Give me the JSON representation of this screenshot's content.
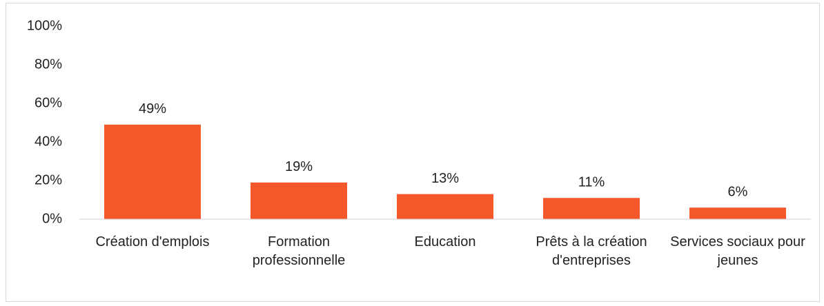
{
  "chart_data": {
    "type": "bar",
    "categories": [
      "Création d'emplois",
      "Formation professionnelle",
      "Education",
      "Prêts à la création d'entreprises",
      "Services sociaux pour jeunes"
    ],
    "values": [
      49,
      19,
      13,
      11,
      6
    ],
    "value_labels": [
      "49%",
      "19%",
      "13%",
      "11%",
      "6%"
    ],
    "color": "#f4572a",
    "ylim": [
      0,
      100
    ],
    "yticks": [
      {
        "value": 0,
        "label": "0%"
      },
      {
        "value": 20,
        "label": "20%"
      },
      {
        "value": 40,
        "label": "40%"
      },
      {
        "value": 60,
        "label": "60%"
      },
      {
        "value": 80,
        "label": "80%"
      },
      {
        "value": 100,
        "label": "100%"
      }
    ],
    "grid": false
  }
}
